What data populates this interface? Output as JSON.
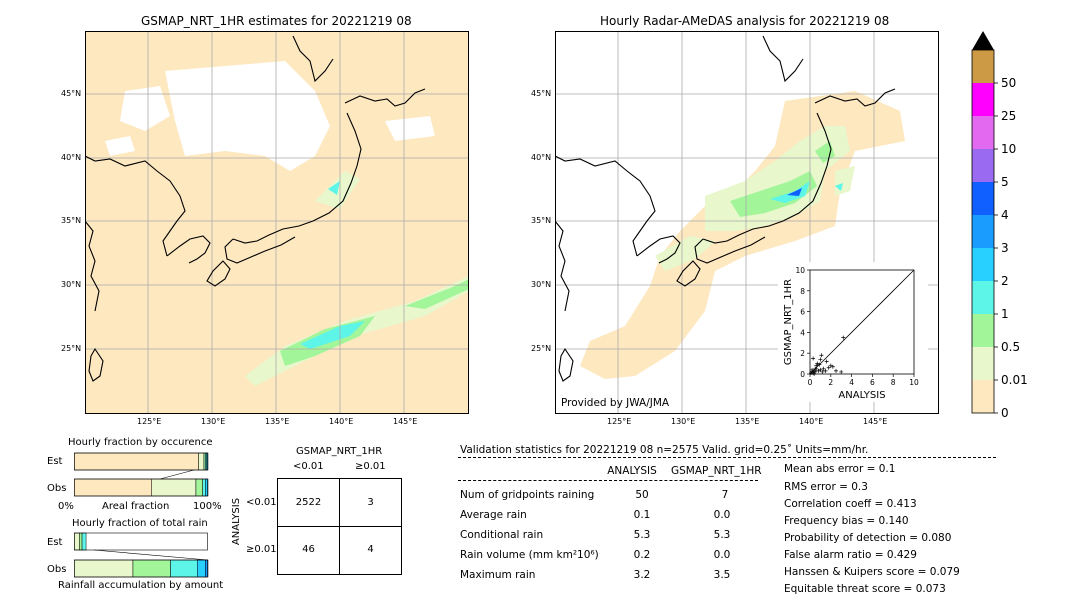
{
  "left_map": {
    "title": "GSMAP_NRT_1HR estimates for 20221219 08",
    "lat_labels": [
      "45°N",
      "40°N",
      "35°N",
      "30°N",
      "25°N"
    ],
    "lon_labels": [
      "125°E",
      "130°E",
      "135°E",
      "140°E",
      "145°E"
    ]
  },
  "right_map": {
    "title": "Hourly Radar-AMeDAS analysis for 20221219 08",
    "lat_labels": [
      "45°N",
      "40°N",
      "35°N",
      "30°N",
      "25°N"
    ],
    "lon_labels": [
      "125°E",
      "130°E",
      "135°E",
      "140°E",
      "145°E"
    ],
    "credit": "Provided by JWA/JMA"
  },
  "colorbar": {
    "labels": [
      "0",
      "0.01",
      "0.5",
      "1",
      "2",
      "3",
      "4",
      "5",
      "10",
      "25",
      "50"
    ],
    "colors": [
      "#fde8c0",
      "#e8f7cc",
      "#a3f59a",
      "#5cf5e8",
      "#27d0ff",
      "#1a9cff",
      "#1060ff",
      "#9a6bf0",
      "#e36af0",
      "#ff00ff",
      "#cc9a45"
    ]
  },
  "chart_data": [
    {
      "type": "scatter",
      "xlabel": "ANALYSIS",
      "ylabel": "GSMAP_NRT_1HR",
      "xlim": [
        0,
        10
      ],
      "ylim": [
        0,
        10
      ],
      "x_ticks": [
        "0",
        "2",
        "4",
        "6",
        "8",
        "10"
      ],
      "y_ticks": [
        "0",
        "2",
        "4",
        "6",
        "8",
        "10"
      ],
      "x": [
        0.1,
        0.2,
        0.3,
        0.4,
        0.5,
        0.6,
        0.8,
        1.0,
        1.2,
        1.5,
        1.8,
        2.0,
        2.5,
        3.0,
        0.3,
        0.7,
        1.1,
        0.5,
        0.9,
        1.3,
        0.2,
        0.4,
        1.6,
        2.2,
        3.2,
        1.0,
        0.6
      ],
      "y": [
        0.1,
        0.2,
        0.1,
        0.3,
        0.2,
        0.5,
        0.3,
        0.4,
        0.2,
        0.3,
        0.6,
        0.8,
        0.3,
        0.2,
        1.5,
        1.0,
        1.8,
        0.5,
        0.9,
        0.5,
        0.4,
        0.0,
        1.2,
        0.7,
        3.5,
        1.4,
        0.8
      ]
    },
    {
      "type": "bar",
      "title": "Hourly fraction by occurence",
      "categories": [
        "Est",
        "Obs"
      ],
      "series": [
        {
          "name": "0",
          "values": [
            0.93,
            0.58
          ]
        },
        {
          "name": "0.01",
          "values": [
            0.04,
            0.33
          ]
        },
        {
          "name": "0.5",
          "values": [
            0.01,
            0.05
          ]
        },
        {
          "name": "1",
          "values": [
            0.01,
            0.02
          ]
        },
        {
          "name": "2",
          "values": [
            0.01,
            0.02
          ]
        }
      ],
      "xlabel": "Areal fraction",
      "x_left_label": "0%",
      "x_right_label": "100%"
    },
    {
      "type": "bar",
      "title": "Hourly fraction of total rain",
      "categories": [
        "Est",
        "Obs"
      ],
      "series": [
        {
          "name": "0.01",
          "values": [
            0.04,
            0.44
          ]
        },
        {
          "name": "0.5",
          "values": [
            0.02,
            0.28
          ]
        },
        {
          "name": "1",
          "values": [
            0.03,
            0.2
          ]
        },
        {
          "name": "2",
          "values": [
            0.0,
            0.06
          ]
        },
        {
          "name": "3",
          "values": [
            0.0,
            0.02
          ]
        }
      ],
      "xlabel": "Rainfall accumulation by amount"
    },
    {
      "type": "table",
      "title": "GSMAP_NRT_1HR",
      "col_headers": [
        "<0.01",
        "≥0.01"
      ],
      "row_axis_label": "ANALYSIS",
      "row_headers": [
        "<0.01",
        "≥0.01"
      ],
      "cells": [
        [
          "2522",
          "3"
        ],
        [
          "46",
          "4"
        ]
      ]
    }
  ],
  "validation": {
    "header": "Validation statistics for 20221219 08  n=2575 Valid. grid=0.25˚ Units=mm/hr.",
    "col_analysis": "ANALYSIS",
    "col_gsmap": "GSMAP_NRT_1HR",
    "rows": [
      {
        "label": "Num of gridpoints raining",
        "analysis": "50",
        "gsmap": "7"
      },
      {
        "label": "Average rain",
        "analysis": "0.1",
        "gsmap": "0.0"
      },
      {
        "label": "Conditional rain",
        "analysis": "5.3",
        "gsmap": "5.3"
      },
      {
        "label": "Rain volume (mm km²10⁶)",
        "analysis": "0.2",
        "gsmap": "0.0"
      },
      {
        "label": "Maximum rain",
        "analysis": "3.2",
        "gsmap": "3.5"
      }
    ],
    "scores": [
      "Mean abs error =    0.1",
      "RMS error =    0.3",
      "Correlation coeff =  0.413",
      "Frequency bias =  0.140",
      "Probability of detection =  0.080",
      "False alarm ratio =  0.429",
      "Hanssen & Kuipers score =  0.079",
      "Equitable threat score =  0.073"
    ]
  }
}
